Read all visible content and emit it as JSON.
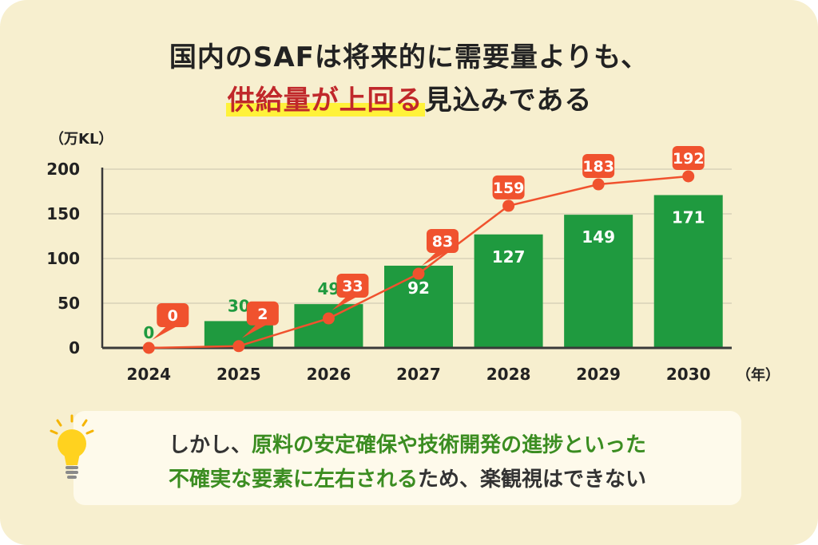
{
  "headline": {
    "line1": "国内のSAFは将来的に需要量よりも、",
    "line2_highlight": "供給量が上回る",
    "line2_rest": "見込みである"
  },
  "chart_data": {
    "type": "bar+line",
    "ylabel": "（万KL）",
    "xlabel": "（年）",
    "ylim": [
      0,
      200
    ],
    "yticks": [
      0,
      50,
      100,
      150,
      200
    ],
    "categories": [
      "2024",
      "2025",
      "2026",
      "2027",
      "2028",
      "2029",
      "2030"
    ],
    "series": [
      {
        "type": "bar",
        "values": [
          0,
          30,
          49,
          92,
          127,
          149,
          171
        ],
        "color": "#1f9a3f"
      },
      {
        "type": "line",
        "values": [
          0,
          2,
          33,
          83,
          159,
          183,
          192
        ],
        "color": "#f0522e"
      }
    ],
    "grid": true
  },
  "note": {
    "line1_plain": "しかし、",
    "line1_green": "原料の安定確保や技術開発の進捗といった",
    "line2_green": "不確実な要素に左右される",
    "line2_plain": "ため、楽観視はできない"
  },
  "colors": {
    "background": "#f7efcf",
    "bar": "#1f9a3f",
    "line": "#f0522e",
    "highlight_text": "#c0282b",
    "highlight_marker": "#fff23a",
    "note_green": "#3b8d21"
  }
}
